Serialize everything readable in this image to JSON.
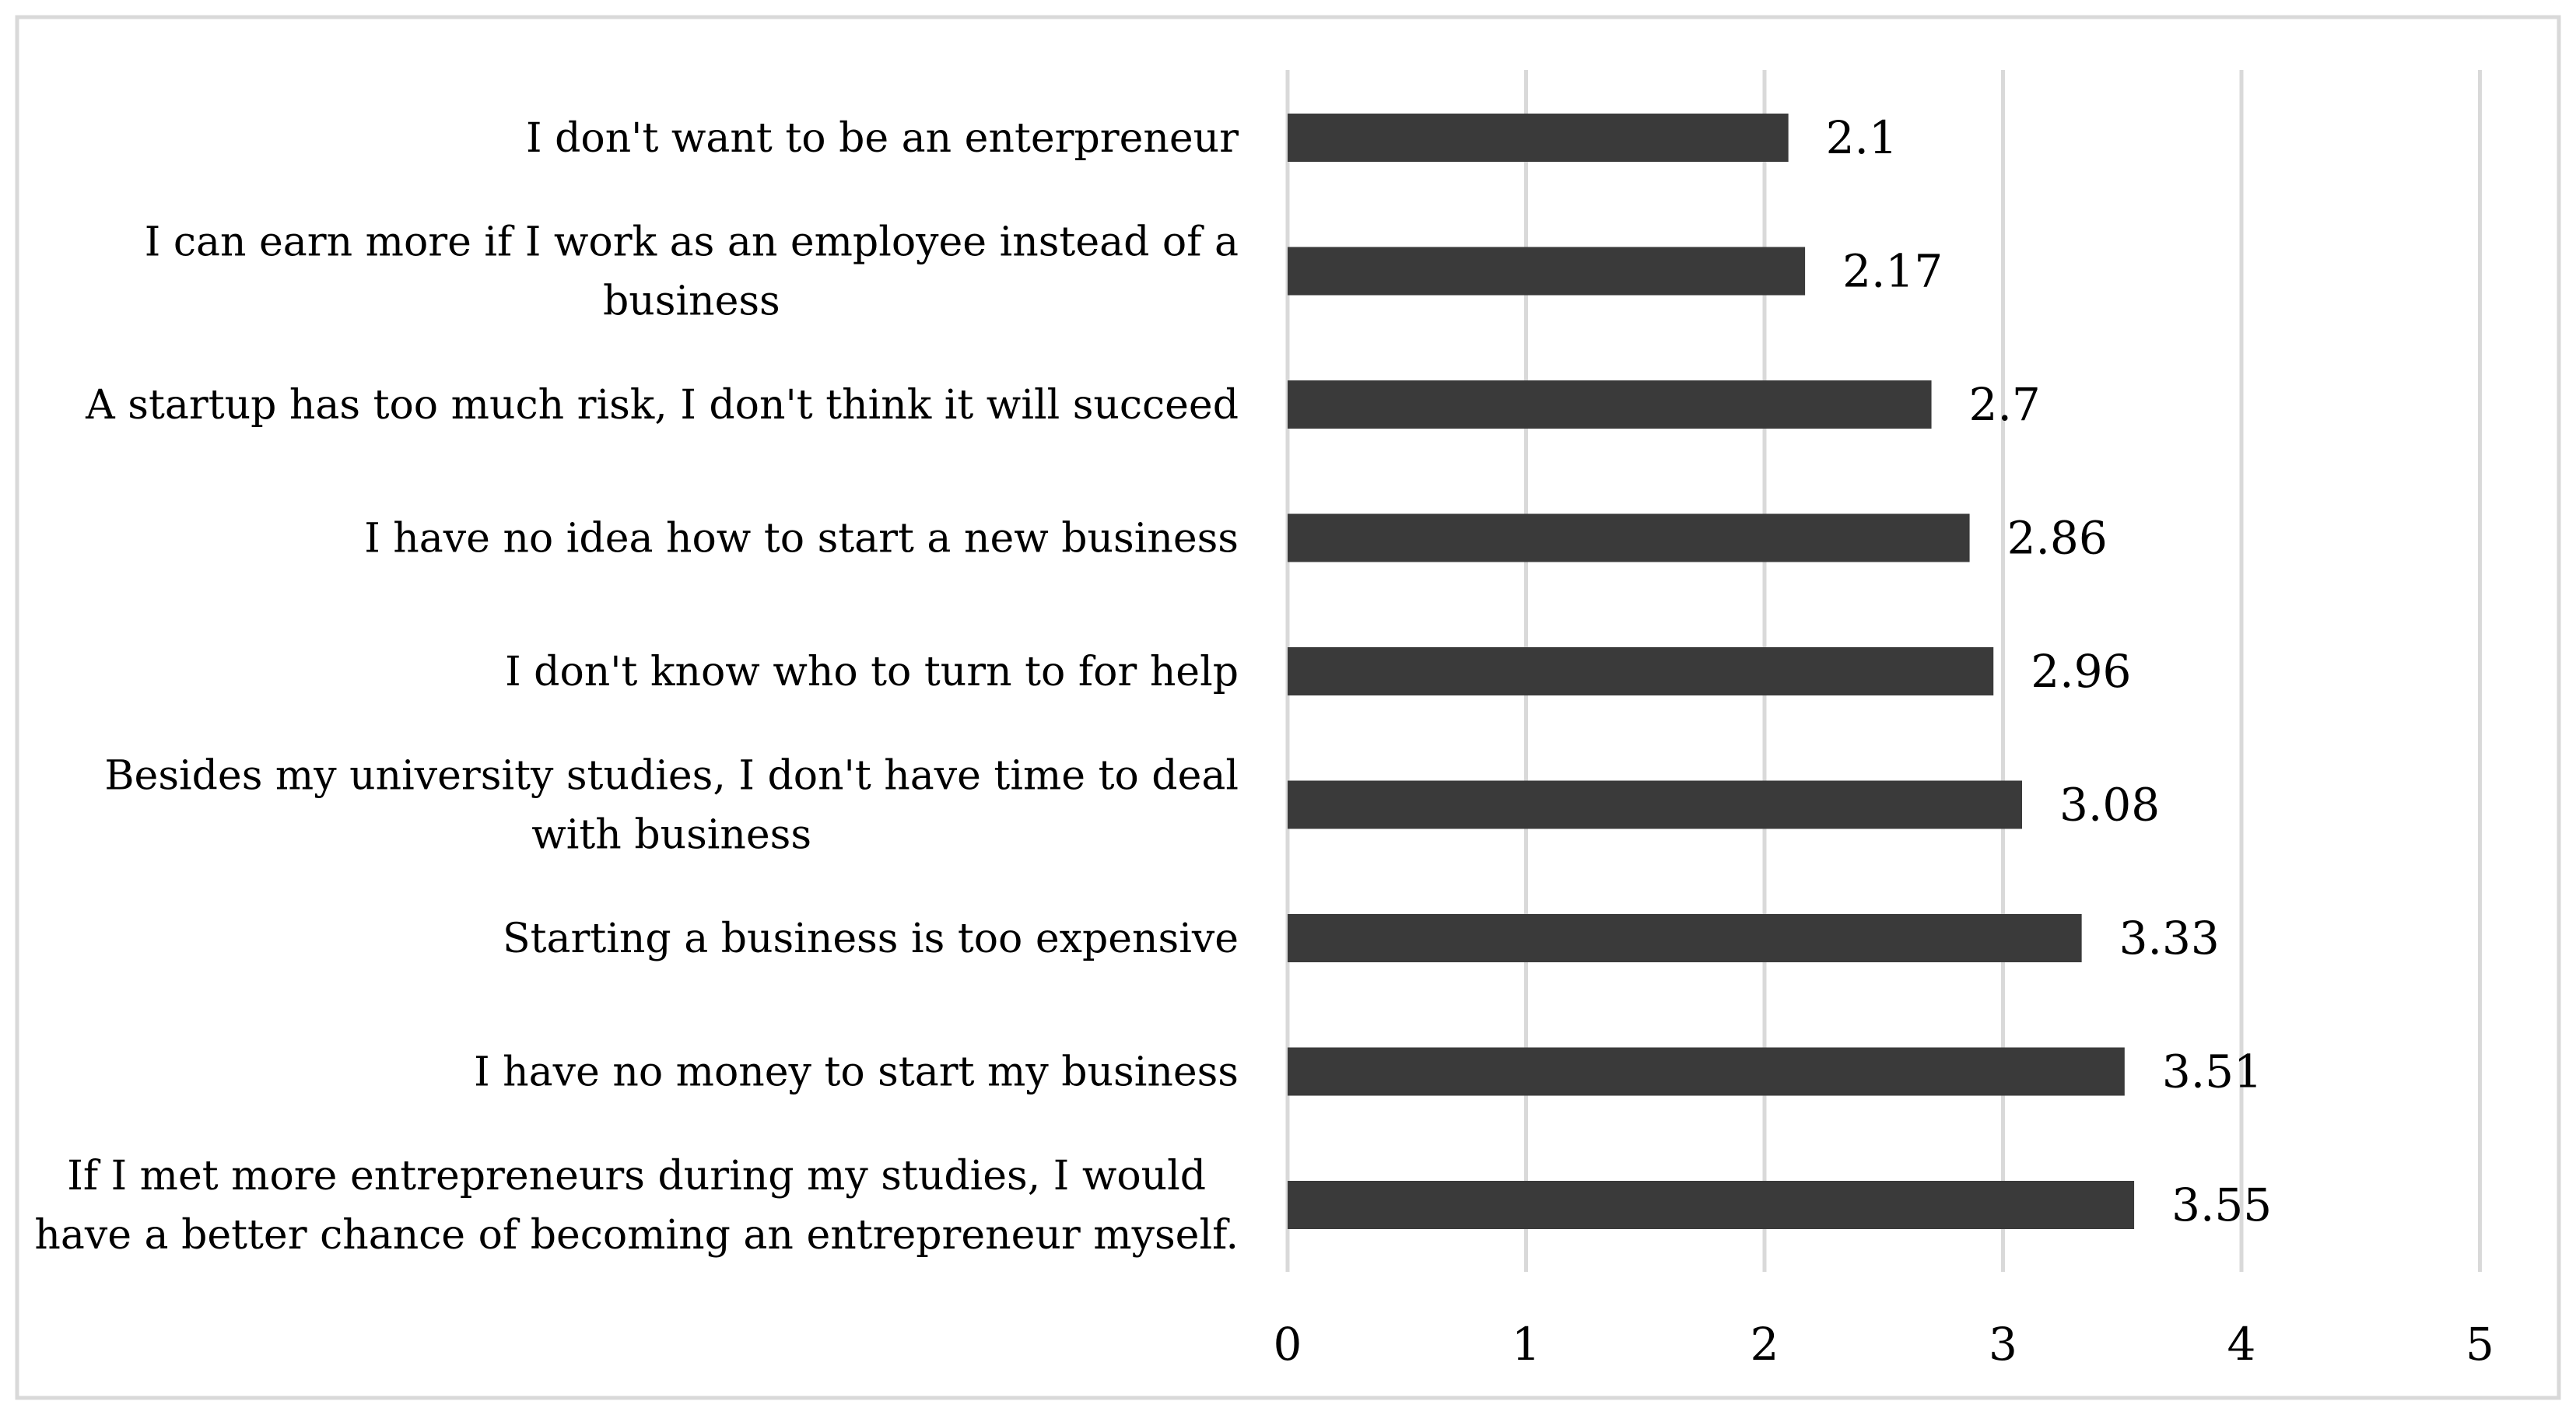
{
  "chart_data": {
    "type": "bar",
    "orientation": "horizontal",
    "categories": [
      "I don't want to be an enterpreneur",
      [
        "I can earn more if I work as an employee instead of a",
        "business"
      ],
      "A startup has too much risk, I don't think it will succeed",
      "I have no idea how to start a new business",
      "I don't know who to turn to for help",
      [
        "Besides my university studies, I don't have time to deal",
        "with business"
      ],
      "Starting a business is too expensive",
      "I have no money to start my business",
      [
        "If I met more entrepreneurs during my studies, I would",
        "have a better chance of becoming an entrepreneur myself."
      ]
    ],
    "values": [
      2.1,
      2.17,
      2.7,
      2.86,
      2.96,
      3.08,
      3.33,
      3.51,
      3.55
    ],
    "data_labels": [
      "2.1",
      "2.17",
      "2.7",
      "2.86",
      "2.96",
      "3.08",
      "3.33",
      "3.51",
      "3.55"
    ],
    "xlim": [
      0,
      5
    ],
    "xticks": [
      "0",
      "1",
      "2",
      "3",
      "4",
      "5"
    ],
    "grid": true,
    "legend": false,
    "bar_color": "#3a3a3a",
    "grid_color": "#d9d9d9",
    "frame_color": "#d9d9d9"
  }
}
